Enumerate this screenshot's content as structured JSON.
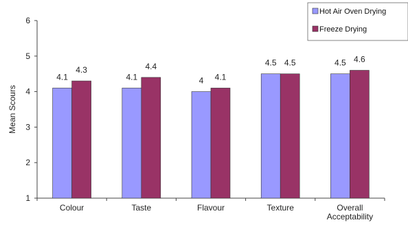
{
  "chart_data": {
    "type": "bar",
    "categories": [
      [
        "Colour"
      ],
      [
        "Taste"
      ],
      [
        "Flavour"
      ],
      [
        "Texture"
      ],
      [
        "Overall",
        "Acceptability"
      ]
    ],
    "series": [
      {
        "name": "Hot Air Oven Drying",
        "color": "#9999ff",
        "values": [
          4.1,
          4.1,
          4,
          4.5,
          4.5
        ],
        "labels": [
          "4.1",
          "4.1",
          "4",
          "4.5",
          "4.5"
        ]
      },
      {
        "name": "Freeze Drying",
        "color": "#993366",
        "values": [
          4.3,
          4.4,
          4.1,
          4.5,
          4.6
        ],
        "labels": [
          "4.3",
          "4.4",
          "4.1",
          "4.5",
          "4.6"
        ]
      }
    ],
    "ylabel": "Mean Scours",
    "xlabel": "",
    "ylim": [
      1,
      6
    ],
    "yticks": [
      1,
      2,
      3,
      4,
      5,
      6
    ],
    "grid": false,
    "legend_position": "top-right"
  }
}
